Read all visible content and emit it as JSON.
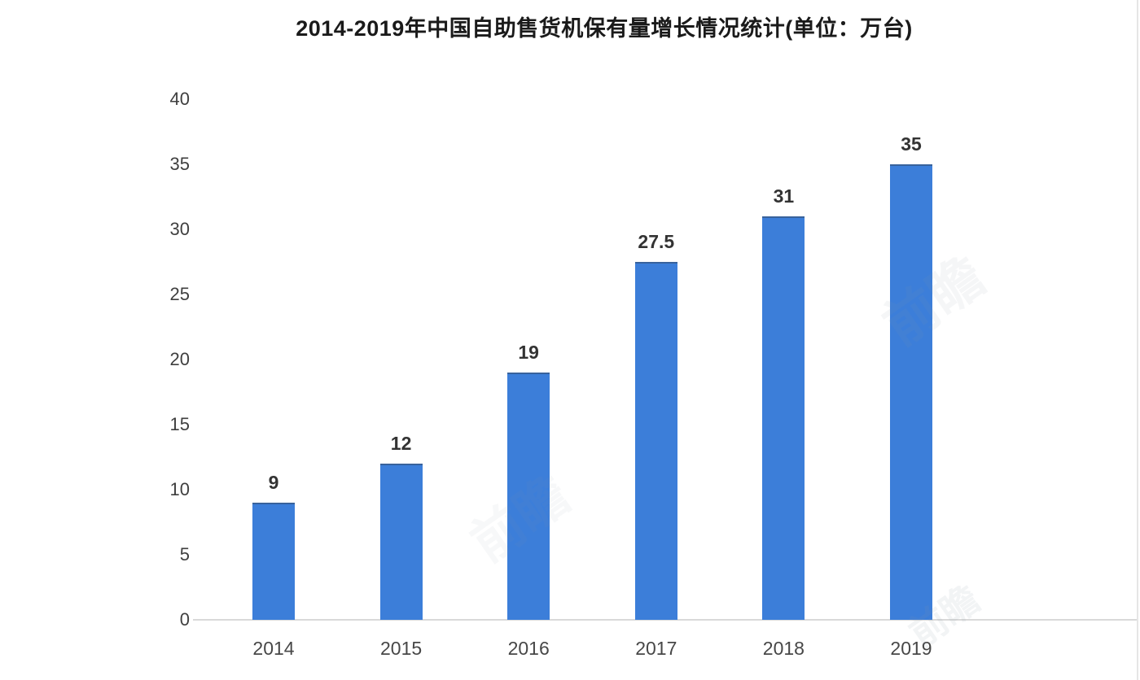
{
  "chart_data": {
    "type": "bar",
    "title": "2014-2019年中国自助售货机保有量增长情况统计(单位：万台)",
    "unit_label": "万台",
    "categories": [
      "2014",
      "2015",
      "2016",
      "2017",
      "2018",
      "2019"
    ],
    "values": [
      9,
      12,
      19,
      27.5,
      31,
      35
    ],
    "data_labels": [
      "9",
      "12",
      "19",
      "27.5",
      "31",
      "35"
    ],
    "xlabel": "",
    "ylabel": "",
    "ylim": [
      0,
      40
    ],
    "yticks": [
      0,
      5,
      10,
      15,
      20,
      25,
      30,
      35,
      40
    ],
    "grid": false,
    "legend_position": "none",
    "bar_color": "#3c7ed9",
    "axis_line_color": "#d9d9d9",
    "tick_label_color": "#3f3f3f",
    "x_label_color": "#474747",
    "data_label_color": "#333333",
    "title_color": "#1a1a1a"
  },
  "watermark": {
    "text": "前瞻",
    "color": "#8c97a8"
  }
}
